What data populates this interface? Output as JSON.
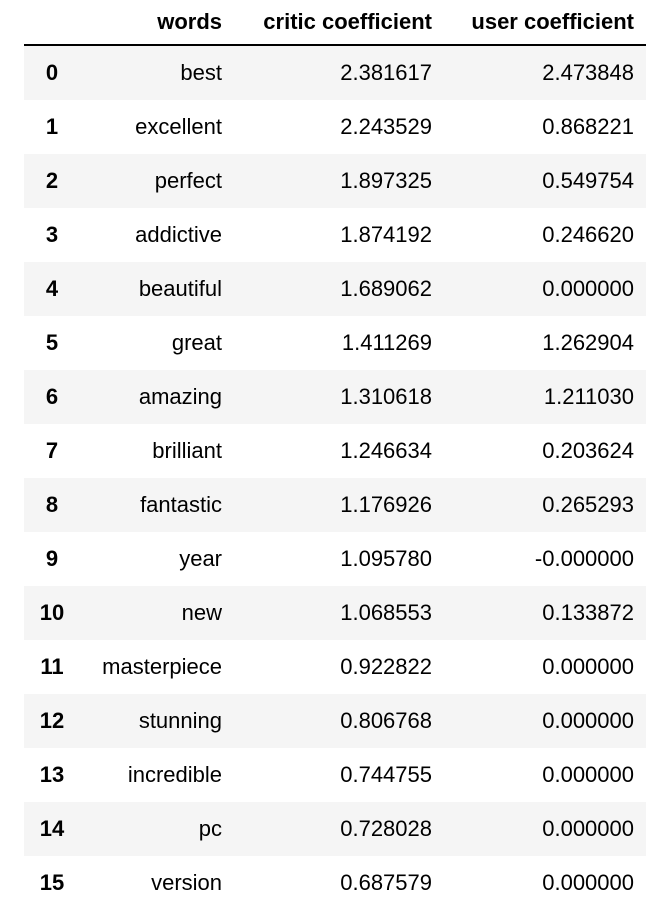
{
  "table": {
    "columns": [
      "",
      "words",
      "critic coefficient",
      "user coefficient"
    ],
    "rows": [
      {
        "index": "0",
        "words": "best",
        "critic": "2.381617",
        "user": "2.473848"
      },
      {
        "index": "1",
        "words": "excellent",
        "critic": "2.243529",
        "user": "0.868221"
      },
      {
        "index": "2",
        "words": "perfect",
        "critic": "1.897325",
        "user": "0.549754"
      },
      {
        "index": "3",
        "words": "addictive",
        "critic": "1.874192",
        "user": "0.246620"
      },
      {
        "index": "4",
        "words": "beautiful",
        "critic": "1.689062",
        "user": "0.000000"
      },
      {
        "index": "5",
        "words": "great",
        "critic": "1.411269",
        "user": "1.262904"
      },
      {
        "index": "6",
        "words": "amazing",
        "critic": "1.310618",
        "user": "1.211030"
      },
      {
        "index": "7",
        "words": "brilliant",
        "critic": "1.246634",
        "user": "0.203624"
      },
      {
        "index": "8",
        "words": "fantastic",
        "critic": "1.176926",
        "user": "0.265293"
      },
      {
        "index": "9",
        "words": "year",
        "critic": "1.095780",
        "user": "-0.000000"
      },
      {
        "index": "10",
        "words": "new",
        "critic": "1.068553",
        "user": "0.133872"
      },
      {
        "index": "11",
        "words": "masterpiece",
        "critic": "0.922822",
        "user": "0.000000"
      },
      {
        "index": "12",
        "words": "stunning",
        "critic": "0.806768",
        "user": "0.000000"
      },
      {
        "index": "13",
        "words": "incredible",
        "critic": "0.744755",
        "user": "0.000000"
      },
      {
        "index": "14",
        "words": "pc",
        "critic": "0.728028",
        "user": "0.000000"
      },
      {
        "index": "15",
        "words": "version",
        "critic": "0.687579",
        "user": "0.000000"
      }
    ]
  }
}
